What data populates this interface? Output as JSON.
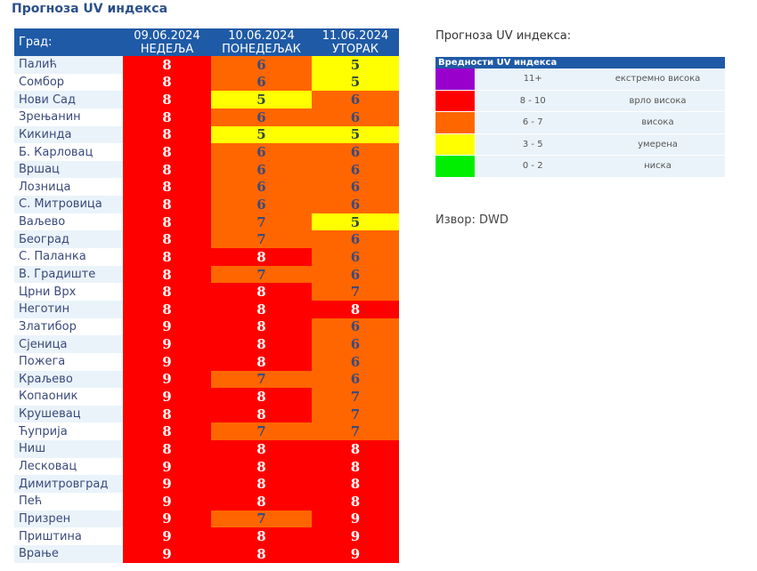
{
  "title": "Прогноза UV индекса",
  "table": {
    "city_header": "Град:",
    "days": [
      {
        "date": "09.06.2024",
        "weekday": "НЕДЕЉА"
      },
      {
        "date": "10.06.2024",
        "weekday": "ПОНЕДЕЉАК"
      },
      {
        "date": "11.06.2024",
        "weekday": "УТОРАК"
      }
    ],
    "rows": [
      {
        "city": "Палић",
        "values": [
          8,
          6,
          5
        ]
      },
      {
        "city": "Сомбор",
        "values": [
          8,
          6,
          5
        ]
      },
      {
        "city": "Нови Сад",
        "values": [
          8,
          5,
          6
        ]
      },
      {
        "city": "Зрењанин",
        "values": [
          8,
          6,
          6
        ]
      },
      {
        "city": "Кикинда",
        "values": [
          8,
          5,
          5
        ]
      },
      {
        "city": "Б. Карловац",
        "values": [
          8,
          6,
          6
        ]
      },
      {
        "city": "Вршац",
        "values": [
          8,
          6,
          6
        ]
      },
      {
        "city": "Лозница",
        "values": [
          8,
          6,
          6
        ]
      },
      {
        "city": "С. Митровица",
        "values": [
          8,
          6,
          6
        ]
      },
      {
        "city": "Ваљево",
        "values": [
          8,
          7,
          5
        ]
      },
      {
        "city": "Београд",
        "values": [
          8,
          7,
          6
        ]
      },
      {
        "city": "С. Паланка",
        "values": [
          8,
          8,
          6
        ]
      },
      {
        "city": "В. Градиште",
        "values": [
          8,
          7,
          6
        ]
      },
      {
        "city": "Црни Врх",
        "values": [
          8,
          8,
          7
        ]
      },
      {
        "city": "Неготин",
        "values": [
          8,
          8,
          8
        ]
      },
      {
        "city": "Златибор",
        "values": [
          9,
          8,
          6
        ]
      },
      {
        "city": "Сјеница",
        "values": [
          9,
          8,
          6
        ]
      },
      {
        "city": "Пожега",
        "values": [
          9,
          8,
          6
        ]
      },
      {
        "city": "Краљево",
        "values": [
          9,
          7,
          6
        ]
      },
      {
        "city": "Копаоник",
        "values": [
          9,
          8,
          7
        ]
      },
      {
        "city": "Крушевац",
        "values": [
          8,
          8,
          7
        ]
      },
      {
        "city": "Ћуприја",
        "values": [
          8,
          7,
          7
        ]
      },
      {
        "city": "Ниш",
        "values": [
          8,
          8,
          8
        ]
      },
      {
        "city": "Лесковац",
        "values": [
          9,
          8,
          8
        ]
      },
      {
        "city": "Димитровград",
        "values": [
          9,
          8,
          8
        ]
      },
      {
        "city": "Пећ",
        "values": [
          9,
          8,
          8
        ]
      },
      {
        "city": "Призрен",
        "values": [
          9,
          7,
          9
        ]
      },
      {
        "city": "Приштина",
        "values": [
          9,
          8,
          9
        ]
      },
      {
        "city": "Врање",
        "values": [
          9,
          8,
          9
        ]
      }
    ]
  },
  "legend": {
    "title": "Прогноза UV индекса:",
    "header": "Вредности UV индекса",
    "levels": [
      {
        "range": "11+",
        "label": "екстремно висока",
        "color": "#9900cc",
        "text_color": "#ffffff"
      },
      {
        "range": "8 - 10",
        "label": "врло висока",
        "color": "#ff0000",
        "text_color": "#ffffff"
      },
      {
        "range": "6 - 7",
        "label": "висока",
        "color": "#ff6600",
        "text_color": "#3d4a7a"
      },
      {
        "range": "3 - 5",
        "label": "умерена",
        "color": "#ffff00",
        "text_color": "#2e4a3a"
      },
      {
        "range": "0 - 2",
        "label": "ниска",
        "color": "#00ee00",
        "text_color": "#2e4a3a"
      }
    ]
  },
  "source": "Извор: DWD"
}
